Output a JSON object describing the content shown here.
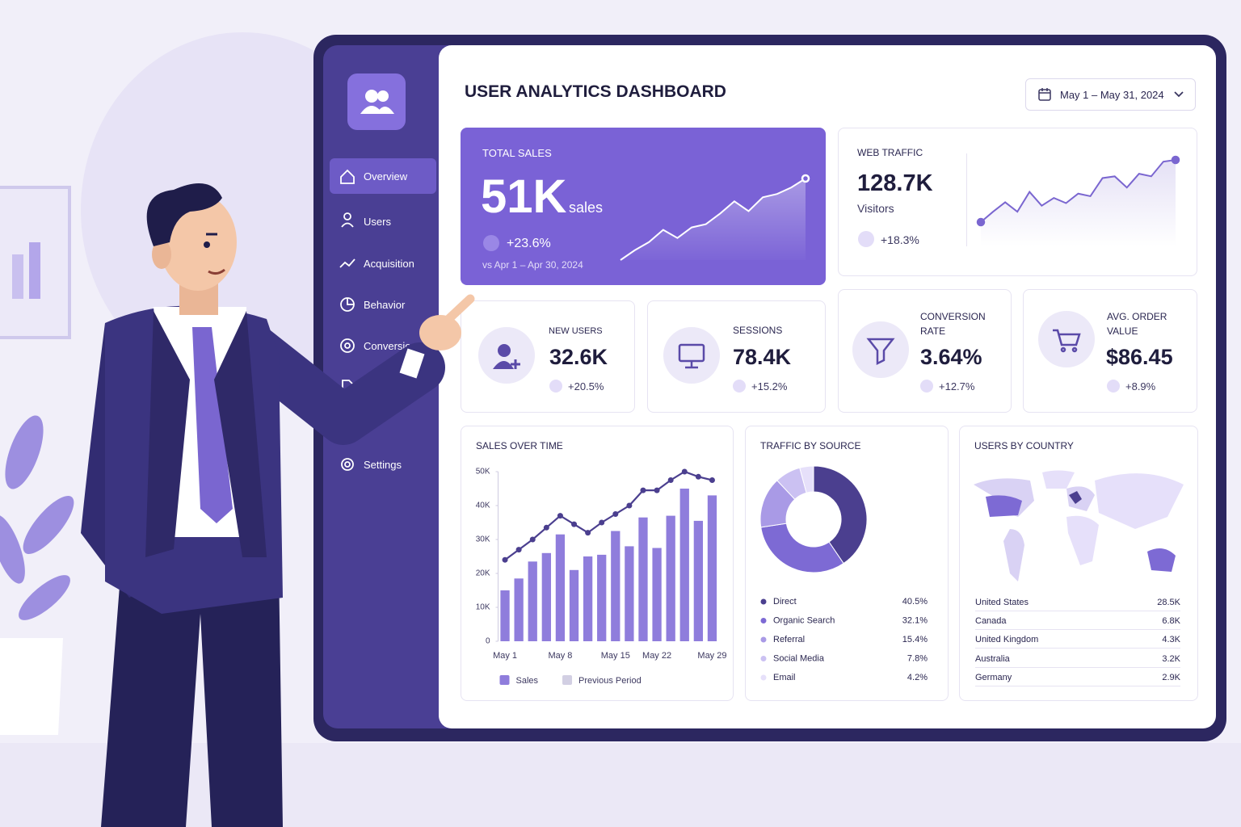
{
  "header": {
    "title": "USER ANALYTICS DASHBOARD",
    "date_range": "May 1 – May 31, 2024"
  },
  "sidebar": {
    "items": [
      "Overview",
      "Users",
      "Acquisition",
      "Behavior",
      "Conversions",
      "Settings"
    ]
  },
  "kpis": {
    "total_sales": {
      "label": "TOTAL SALES",
      "value": "51K",
      "unit": "sales",
      "change": "+23.6%",
      "comparison": "vs Apr 1 – Apr 30, 2024"
    },
    "web_traffic": {
      "label": "WEB TRAFFIC",
      "value": "128.7K",
      "unit": "Visitors",
      "change": "+18.3%"
    },
    "new_users": {
      "label": "NEW USERS",
      "value": "32.6K",
      "change": "+20.5%"
    },
    "sessions": {
      "label": "SESSIONS",
      "value": "78.4K",
      "change": "+15.2%"
    },
    "conversion_rate": {
      "label": "CONVERSION RATE",
      "value": "3.64%",
      "change": "+12.7%"
    },
    "avg_order_value": {
      "label": "AVG. ORDER VALUE",
      "value": "$86.45",
      "change": "+8.9%"
    }
  },
  "countries": {
    "title": "USERS BY COUNTRY",
    "rows": [
      [
        "United States",
        "28.5K"
      ],
      [
        "Canada",
        "6.8K"
      ],
      [
        "United Kingdom",
        "4.3K"
      ],
      [
        "Australia",
        "3.2K"
      ],
      [
        "Germany",
        "2.9K"
      ]
    ]
  },
  "chart_data": [
    {
      "type": "line",
      "values": [
        0,
        12,
        22,
        37,
        27,
        40,
        44,
        57,
        72,
        60,
        77,
        81,
        89,
        100
      ],
      "ylim": [
        0,
        100
      ],
      "color": "#ffffff"
    },
    {
      "type": "line",
      "values": [
        28,
        40,
        51,
        40,
        63,
        47,
        56,
        50,
        61,
        58,
        79,
        81,
        68,
        84,
        81,
        98,
        100
      ],
      "ylim": [
        0,
        100
      ],
      "color": "#7a66d0"
    },
    {
      "type": "combo",
      "title": "SALES OVER TIME",
      "categories": [
        "May 1",
        null,
        null,
        null,
        "May 8",
        null,
        null,
        null,
        "May 15",
        null,
        null,
        "May 22",
        null,
        null,
        null,
        "May 29"
      ],
      "series": [
        {
          "name": "Sales",
          "type": "bar",
          "color": "#8f7ddc",
          "values": [
            15000,
            18500,
            23500,
            26000,
            31500,
            21000,
            25000,
            25500,
            32500,
            28000,
            36500,
            27500,
            37000,
            45000,
            35500,
            43000
          ]
        },
        {
          "name": "Previous Period",
          "type": "line",
          "color": "#4b3f8f",
          "values": [
            24000,
            27000,
            30000,
            33500,
            37000,
            34500,
            32000,
            35000,
            37500,
            40000,
            44500,
            44500,
            47500,
            50000,
            48500,
            47500
          ]
        }
      ],
      "ylim": [
        0,
        50000
      ],
      "yticks": [
        0,
        {
          "value": 10000,
          "label": "10K"
        },
        {
          "value": 20000,
          "label": "20K"
        },
        {
          "value": 30000,
          "label": "30K"
        },
        {
          "value": 40000,
          "label": "40K"
        },
        {
          "value": 50000,
          "label": "50K"
        }
      ],
      "grid": false
    },
    {
      "type": "pie",
      "title": "TRAFFIC BY SOURCE",
      "categories": [
        "Direct",
        "Organic Search",
        "Referral",
        "Social Media",
        "Email"
      ],
      "values": [
        40.5,
        32.1,
        15.4,
        7.8,
        4.2
      ],
      "value_labels": [
        "40.5%",
        "32.1%",
        "15.4%",
        "7.8%",
        "4.2%"
      ],
      "colors": [
        "#4b3f8f",
        "#7d6ad4",
        "#a99ae6",
        "#cbc1f2",
        "#e6e0fa"
      ]
    }
  ]
}
